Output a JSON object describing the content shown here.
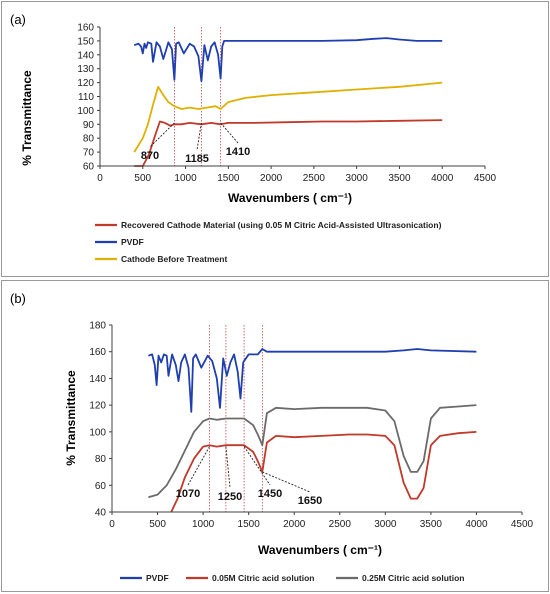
{
  "chart_data": [
    {
      "panel_label": "(a)",
      "type": "line",
      "xlabel": "Wavenumbers ( cm⁻¹)",
      "ylabel": "% Transmittance",
      "xlim": [
        0,
        4500
      ],
      "ylim": [
        60,
        160
      ],
      "xticks": [
        0,
        500,
        1000,
        1500,
        2000,
        2500,
        3000,
        3500,
        4000,
        4500
      ],
      "yticks": [
        60,
        70,
        80,
        90,
        100,
        110,
        120,
        130,
        140,
        150,
        160
      ],
      "grid": false,
      "legend_position": "bottom",
      "series": [
        {
          "name": "Recovered Cathode Material (using  0.05 M Citric Acid-Assisted Ultrasonication)",
          "color": "#c0392b",
          "x": [
            400,
            500,
            570,
            650,
            700,
            760,
            820,
            870,
            950,
            1050,
            1185,
            1300,
            1410,
            1500,
            1800,
            2200,
            2600,
            3000,
            3500,
            4000
          ],
          "y": [
            48,
            57,
            68,
            83,
            92,
            91,
            89,
            90,
            90,
            91,
            90,
            91,
            90,
            91,
            91,
            91.5,
            92,
            92,
            92.5,
            93
          ]
        },
        {
          "name": "PVDF",
          "color": "#1f3fb0",
          "x": [
            400,
            450,
            480,
            500,
            520,
            540,
            560,
            600,
            620,
            660,
            700,
            740,
            770,
            800,
            840,
            870,
            890,
            920,
            980,
            1050,
            1100,
            1150,
            1185,
            1220,
            1260,
            1300,
            1340,
            1380,
            1410,
            1430,
            1450,
            1500,
            1800,
            2200,
            2600,
            3000,
            3200,
            3350,
            3500,
            3700,
            4000
          ],
          "y": [
            147,
            148,
            146,
            141,
            148,
            145,
            149,
            148,
            135,
            149,
            146,
            137,
            143,
            149,
            144,
            122,
            148,
            149,
            141,
            148,
            146,
            139,
            121,
            147,
            136,
            146,
            149,
            140,
            123,
            146,
            150,
            150,
            150,
            150,
            150,
            150.5,
            151.5,
            152,
            151,
            150,
            150
          ]
        },
        {
          "name": "Cathode Before Treatment",
          "color": "#e0b000",
          "x": [
            400,
            500,
            560,
            620,
            680,
            740,
            800,
            870,
            950,
            1050,
            1150,
            1250,
            1350,
            1410,
            1500,
            1700,
            2000,
            2500,
            3000,
            3500,
            4000
          ],
          "y": [
            70,
            80,
            90,
            104,
            117,
            111,
            106,
            103,
            101,
            102,
            101,
            102,
            103,
            101,
            106,
            109,
            111,
            113,
            115,
            117,
            120
          ]
        }
      ],
      "annotations": [
        {
          "text": "870",
          "x": 870
        },
        {
          "text": "1185",
          "x": 1185
        },
        {
          "text": "1410",
          "x": 1410
        }
      ]
    },
    {
      "panel_label": "(b)",
      "type": "line",
      "xlabel": "Wavenumbers ( cm⁻¹)",
      "ylabel": "% Transmittance",
      "xlim": [
        0,
        4500
      ],
      "ylim": [
        40,
        180
      ],
      "xticks": [
        0,
        500,
        1000,
        1500,
        2000,
        2500,
        3000,
        3500,
        4000,
        4500
      ],
      "yticks": [
        40,
        60,
        80,
        100,
        120,
        140,
        160,
        180
      ],
      "grid": false,
      "legend_position": "bottom",
      "series": [
        {
          "name": "PVDF",
          "color": "#1f3fb0",
          "x": [
            400,
            440,
            470,
            490,
            510,
            540,
            570,
            600,
            620,
            660,
            700,
            730,
            760,
            800,
            840,
            870,
            890,
            920,
            980,
            1050,
            1100,
            1150,
            1185,
            1220,
            1260,
            1300,
            1340,
            1380,
            1410,
            1440,
            1500,
            1600,
            1650,
            1700,
            2000,
            2500,
            3000,
            3200,
            3350,
            3500,
            4000
          ],
          "y": [
            157,
            158,
            150,
            135,
            157,
            152,
            158,
            157,
            142,
            158,
            150,
            138,
            152,
            158,
            148,
            115,
            155,
            158,
            148,
            157,
            153,
            140,
            118,
            155,
            142,
            152,
            158,
            145,
            125,
            152,
            158,
            158,
            162,
            160,
            160,
            160,
            160,
            161,
            162,
            161,
            160
          ]
        },
        {
          "name": "0.05M Citric acid solution",
          "color": "#c0392b",
          "x": [
            650,
            720,
            800,
            900,
            1000,
            1070,
            1150,
            1250,
            1350,
            1450,
            1550,
            1600,
            1650,
            1700,
            1800,
            2000,
            2300,
            2600,
            2800,
            3000,
            3100,
            3200,
            3280,
            3350,
            3420,
            3500,
            3600,
            3800,
            4000
          ],
          "y": [
            40,
            50,
            66,
            80,
            89,
            90,
            89,
            90,
            90,
            90,
            85,
            78,
            70,
            92,
            97,
            96,
            97,
            98,
            98,
            97,
            90,
            62,
            50,
            50,
            58,
            90,
            97,
            99,
            100
          ]
        },
        {
          "name": "0.25M Citric acid solution",
          "color": "#6b6b6b",
          "x": [
            400,
            500,
            600,
            700,
            800,
            900,
            1000,
            1070,
            1150,
            1250,
            1350,
            1450,
            1550,
            1600,
            1650,
            1700,
            1800,
            2000,
            2300,
            2600,
            2800,
            3000,
            3100,
            3200,
            3280,
            3350,
            3420,
            3500,
            3600,
            3800,
            4000
          ],
          "y": [
            51,
            53,
            60,
            72,
            86,
            100,
            108,
            110,
            109,
            110,
            110,
            110,
            105,
            98,
            90,
            114,
            118,
            117,
            118,
            118,
            118,
            116,
            108,
            82,
            70,
            70,
            78,
            110,
            118,
            119,
            120
          ]
        }
      ],
      "annotations": [
        {
          "text": "1070",
          "x": 1070
        },
        {
          "text": "1250",
          "x": 1250
        },
        {
          "text": "1450",
          "x": 1450
        },
        {
          "text": "1650",
          "x": 1650
        }
      ]
    }
  ]
}
